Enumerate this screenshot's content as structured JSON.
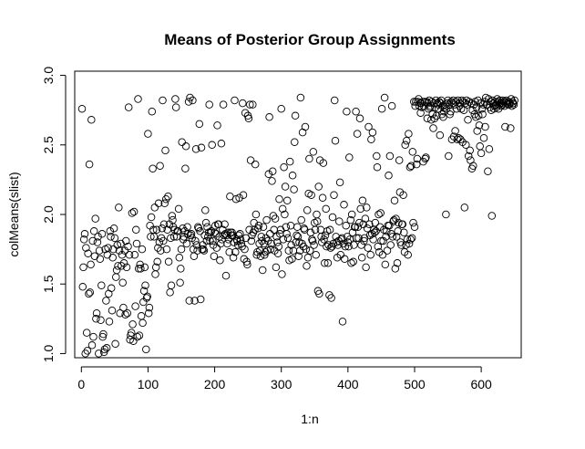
{
  "chart_data": {
    "type": "scatter",
    "title": "Means of Posterior Group Assignments",
    "xlabel": "1:n",
    "ylabel": "colMeans(slist)",
    "xlim": [
      -10,
      660
    ],
    "ylim": [
      0.97,
      3.03
    ],
    "xticks": [
      0,
      100,
      200,
      300,
      400,
      500,
      600
    ],
    "yticks": [
      1.0,
      1.5,
      2.0,
      2.5,
      3.0
    ],
    "xtick_labels": [
      "0",
      "100",
      "200",
      "300",
      "400",
      "500",
      "600"
    ],
    "ytick_labels": [
      "1.0",
      "1.5",
      "2.0",
      "2.5",
      "3.0"
    ],
    "grid": false,
    "legend": "none",
    "marker": "open-circle",
    "n": 650,
    "x": [
      1,
      2,
      3,
      4,
      5,
      6,
      7,
      8,
      9,
      10,
      11,
      12,
      13,
      14,
      15,
      16,
      17,
      18,
      19,
      20,
      21,
      22,
      23,
      24,
      25,
      26,
      27,
      28,
      29,
      30,
      31,
      32,
      33,
      34,
      35,
      36,
      37,
      38,
      39,
      40,
      41,
      42,
      43,
      44,
      45,
      46,
      47,
      48,
      49,
      50,
      51,
      52,
      53,
      54,
      55,
      56,
      57,
      58,
      59,
      60,
      61,
      62,
      63,
      64,
      65,
      66,
      67,
      68,
      69,
      70,
      71,
      72,
      73,
      74,
      75,
      76,
      77,
      78,
      79,
      80,
      81,
      82,
      83,
      84,
      85,
      86,
      87,
      88,
      89,
      90,
      91,
      92,
      93,
      94,
      95,
      96,
      97,
      98,
      99,
      100,
      101,
      102,
      103,
      104,
      105,
      106,
      107,
      108,
      109,
      110,
      111,
      112,
      113,
      114,
      115,
      116,
      117,
      118,
      119,
      120,
      121,
      122,
      123,
      124,
      125,
      126,
      127,
      128,
      129,
      130,
      131,
      132,
      133,
      134,
      135,
      136,
      137,
      138,
      139,
      140,
      141,
      142,
      143,
      144,
      145,
      146,
      147,
      148,
      149,
      150,
      151,
      152,
      153,
      154,
      155,
      156,
      157,
      158,
      159,
      160,
      161,
      162,
      163,
      164,
      165,
      166,
      167,
      168,
      169,
      170,
      171,
      172,
      173,
      174,
      175,
      176,
      177,
      178,
      179,
      180,
      181,
      182,
      183,
      184,
      185,
      186,
      187,
      188,
      189,
      190,
      191,
      192,
      193,
      194,
      195,
      196,
      197,
      198,
      199,
      200,
      201,
      202,
      203,
      204,
      205,
      206,
      207,
      208,
      209,
      210,
      211,
      212,
      213,
      214,
      215,
      216,
      217,
      218,
      219,
      220,
      221,
      222,
      223,
      224,
      225,
      226,
      227,
      228,
      229,
      230,
      231,
      232,
      233,
      234,
      235,
      236,
      237,
      238,
      239,
      240,
      241,
      242,
      243,
      244,
      245,
      246,
      247,
      248,
      249,
      250,
      251,
      252,
      253,
      254,
      255,
      256,
      257,
      258,
      259,
      260,
      261,
      262,
      263,
      264,
      265,
      266,
      267,
      268,
      269,
      270,
      271,
      272,
      273,
      274,
      275,
      276,
      277,
      278,
      279,
      280,
      281,
      282,
      283,
      284,
      285,
      286,
      287,
      288,
      289,
      290,
      291,
      292,
      293,
      294,
      295,
      296,
      297,
      298,
      299,
      300,
      301,
      302,
      303,
      304,
      305,
      306,
      307,
      308,
      309,
      310,
      311,
      312,
      313,
      314,
      315,
      316,
      317,
      318,
      319,
      320,
      321,
      322,
      323,
      324,
      325,
      326,
      327,
      328,
      329,
      330,
      331,
      332,
      333,
      334,
      335,
      336,
      337,
      338,
      339,
      340,
      341,
      342,
      343,
      344,
      345,
      346,
      347,
      348,
      349,
      350,
      351,
      352,
      353,
      354,
      355,
      356,
      357,
      358,
      359,
      360,
      361,
      362,
      363,
      364,
      365,
      366,
      367,
      368,
      369,
      370,
      371,
      372,
      373,
      374,
      375,
      376,
      377,
      378,
      379,
      380,
      381,
      382,
      383,
      384,
      385,
      386,
      387,
      388,
      389,
      390,
      391,
      392,
      393,
      394,
      395,
      396,
      397,
      398,
      399,
      400,
      401,
      402,
      403,
      404,
      405,
      406,
      407,
      408,
      409,
      410,
      411,
      412,
      413,
      414,
      415,
      416,
      417,
      418,
      419,
      420,
      421,
      422,
      423,
      424,
      425,
      426,
      427,
      428,
      429,
      430,
      431,
      432,
      433,
      434,
      435,
      436,
      437,
      438,
      439,
      440,
      441,
      442,
      443,
      444,
      445,
      446,
      447,
      448,
      449,
      450,
      451,
      452,
      453,
      454,
      455,
      456,
      457,
      458,
      459,
      460,
      461,
      462,
      463,
      464,
      465,
      466,
      467,
      468,
      469,
      470,
      471,
      472,
      473,
      474,
      475,
      476,
      477,
      478,
      479,
      480,
      481,
      482,
      483,
      484,
      485,
      486,
      487,
      488,
      489,
      490,
      491,
      492,
      493,
      494,
      495,
      496,
      497,
      498,
      499,
      500,
      501,
      502,
      503,
      504,
      505,
      506,
      507,
      508,
      509,
      510,
      511,
      512,
      513,
      514,
      515,
      516,
      517,
      518,
      519,
      520,
      521,
      522,
      523,
      524,
      525,
      526,
      527,
      528,
      529,
      530,
      531,
      532,
      533,
      534,
      535,
      536,
      537,
      538,
      539,
      540,
      541,
      542,
      543,
      544,
      545,
      546,
      547,
      548,
      549,
      550,
      551,
      552,
      553,
      554,
      555,
      556,
      557,
      558,
      559,
      560,
      561,
      562,
      563,
      564,
      565,
      566,
      567,
      568,
      569,
      570,
      571,
      572,
      573,
      574,
      575,
      576,
      577,
      578,
      579,
      580,
      581,
      582,
      583,
      584,
      585,
      586,
      587,
      588,
      589,
      590,
      591,
      592,
      593,
      594,
      595,
      596,
      597,
      598,
      599,
      600,
      601,
      602,
      603,
      604,
      605,
      606,
      607,
      608,
      609,
      610,
      611,
      612,
      613,
      614,
      615,
      616,
      617,
      618,
      619,
      620,
      621,
      622,
      623,
      624,
      625,
      626,
      627,
      628,
      629,
      630,
      631,
      632,
      633,
      634,
      635,
      636,
      637,
      638,
      639,
      640,
      641,
      642,
      643,
      644,
      645,
      646,
      647,
      648,
      649,
      650
    ],
    "y": [
      2.76,
      1.48,
      1.62,
      1.82,
      1.86,
      1.0,
      1.76,
      1.15,
      1.02,
      1.72,
      1.43,
      2.36,
      1.44,
      1.64,
      2.68,
      1.06,
      1.81,
      1.12,
      1.88,
      1.7,
      1.97,
      1.25,
      1.29,
      1.8,
      1.84,
      1.0,
      1.74,
      1.68,
      1.24,
      1.49,
      1.86,
      1.12,
      1.14,
      1.01,
      1.03,
      1.75,
      1.38,
      1.04,
      1.71,
      1.76,
      1.43,
      1.23,
      1.88,
      1.84,
      1.47,
      1.31,
      1.69,
      1.75,
      1.9,
      1.83,
      1.07,
      1.55,
      1.6,
      1.78,
      1.63,
      2.05,
      1.74,
      1.29,
      1.79,
      1.63,
      1.71,
      1.51,
      1.33,
      1.65,
      1.74,
      1.28,
      1.81,
      1.62,
      1.29,
      1.77,
      2.77,
      1.71,
      1.1,
      1.13,
      1.15,
      2.01,
      1.21,
      1.09,
      2.02,
      1.71,
      1.34,
      1.89,
      1.79,
      1.12,
      2.83,
      1.61,
      1.13,
      1.64,
      1.61,
      1.27,
      1.75,
      1.22,
      1.37,
      1.45,
      1.62,
      1.49,
      1.03,
      1.4,
      1.41,
      2.58,
      1.29,
      1.33,
      1.92,
      1.84,
      1.98,
      2.74,
      2.33,
      1.89,
      1.84,
      2.05,
      1.57,
      1.62,
      1.89,
      1.66,
      1.76,
      2.08,
      1.8,
      2.35,
      1.74,
      1.83,
      1.9,
      2.82,
      1.81,
      1.93,
      2.08,
      2.46,
      2.11,
      1.75,
      1.89,
      2.13,
      1.66,
      1.93,
      1.44,
      1.83,
      1.49,
      1.99,
      1.96,
      1.91,
      1.84,
      1.89,
      2.83,
      2.77,
      1.84,
      1.88,
      1.88,
      2.04,
      1.69,
      1.51,
      1.61,
      1.75,
      2.52,
      1.9,
      1.82,
      1.84,
      1.88,
      2.33,
      2.49,
      1.79,
      1.91,
      1.86,
      2.81,
      1.38,
      2.84,
      1.85,
      1.86,
      1.83,
      2.82,
      1.75,
      1.7,
      1.38,
      1.81,
      2.47,
      1.78,
      1.74,
      1.91,
      1.9,
      2.65,
      1.88,
      1.39,
      2.48,
      1.75,
      1.78,
      1.75,
      1.74,
      1.85,
      2.03,
      1.94,
      1.81,
      1.91,
      1.84,
      1.87,
      2.79,
      1.81,
      1.87,
      1.88,
      2.5,
      1.81,
      1.78,
      1.7,
      1.87,
      1.92,
      1.86,
      1.76,
      2.64,
      1.93,
      1.93,
      1.84,
      1.67,
      1.79,
      2.51,
      1.82,
      1.89,
      2.79,
      1.85,
      1.93,
      1.86,
      1.56,
      1.85,
      1.79,
      1.87,
      1.82,
      1.73,
      2.13,
      1.87,
      1.85,
      1.87,
      1.85,
      1.69,
      1.8,
      2.82,
      1.73,
      2.11,
      1.82,
      1.81,
      1.78,
      1.85,
      2.12,
      1.86,
      1.82,
      1.79,
      1.77,
      2.8,
      2.14,
      1.68,
      1.75,
      2.73,
      1.83,
      1.66,
      1.64,
      2.71,
      2.69,
      1.89,
      2.79,
      2.39,
      1.81,
      1.85,
      2.79,
      1.87,
      1.94,
      1.89,
      2.36,
      2.0,
      1.71,
      1.73,
      1.9,
      1.92,
      1.79,
      1.74,
      1.7,
      1.84,
      1.81,
      1.6,
      1.91,
      1.79,
      1.71,
      1.73,
      1.83,
      1.96,
      1.74,
      1.81,
      2.29,
      2.7,
      1.86,
      1.75,
      1.79,
      2.24,
      2.31,
      1.99,
      1.89,
      1.74,
      1.97,
      1.62,
      1.84,
      1.8,
      1.72,
      1.77,
      2.11,
      1.86,
      1.89,
      2.76,
      1.57,
      2.04,
      1.82,
      2.34,
      2.0,
      2.2,
      1.91,
      1.86,
      2.1,
      1.83,
      1.74,
      1.67,
      2.38,
      1.92,
      1.78,
      1.68,
      2.28,
      1.74,
      2.18,
      2.52,
      2.71,
      1.8,
      1.85,
      1.91,
      1.84,
      1.7,
      1.8,
      1.74,
      2.84,
      1.96,
      1.79,
      2.59,
      1.77,
      1.9,
      1.89,
      2.63,
      1.75,
      1.63,
      2.03,
      1.69,
      2.15,
      2.4,
      1.74,
      1.87,
      2.14,
      1.82,
      1.81,
      2.45,
      1.78,
      1.94,
      1.89,
      1.71,
      2.0,
      1.95,
      1.45,
      2.2,
      1.43,
      2.39,
      1.89,
      1.84,
      1.8,
      2.12,
      2.37,
      1.82,
      1.65,
      1.85,
      2.04,
      1.77,
      1.88,
      1.65,
      1.78,
      1.42,
      1.89,
      1.76,
      1.4,
      1.77,
      1.98,
      1.79,
      2.14,
      2.82,
      2.53,
      1.84,
      1.8,
      1.69,
      1.78,
      1.81,
      1.95,
      2.23,
      1.71,
      1.82,
      1.83,
      1.23,
      1.79,
      2.07,
      1.68,
      1.77,
      1.92,
      2.74,
      1.84,
      1.8,
      1.77,
      2.41,
      1.82,
      1.96,
      1.65,
      2.0,
      1.87,
      1.66,
      1.78,
      1.91,
      1.91,
      2.74,
      1.83,
      2.58,
      1.91,
      1.83,
      1.94,
      2.69,
      2.04,
      1.78,
      1.69,
      2.1,
      1.93,
      1.81,
      1.83,
      1.97,
      1.62,
      2.05,
      1.9,
      1.76,
      2.63,
      1.93,
      1.85,
      1.71,
      2.54,
      1.86,
      2.59,
      1.82,
      1.89,
      1.87,
      1.94,
      1.88,
      2.42,
      2.34,
      1.77,
      2.0,
      1.73,
      1.91,
      2.01,
      1.81,
      2.76,
      1.71,
      1.81,
      1.89,
      2.84,
      1.64,
      1.84,
      1.88,
      1.74,
      1.92,
      2.28,
      1.92,
      2.42,
      1.78,
      1.86,
      2.78,
      1.84,
      1.95,
      1.96,
      2.1,
      1.61,
      1.97,
      1.84,
      1.65,
      1.88,
      1.94,
      2.39,
      2.16,
      1.8,
      1.78,
      1.93,
      1.93,
      2.14,
      1.87,
      1.73,
      2.5,
      1.78,
      2.53,
      1.82,
      1.71,
      2.58,
      1.79,
      2.34,
      1.82,
      2.35,
      1.83,
      2.45,
      1.94,
      2.81,
      1.91,
      2.78,
      2.81,
      2.36,
      2.4,
      2.81,
      2.83,
      2.78,
      2.8,
      2.73,
      2.8,
      2.77,
      2.81,
      2.38,
      2.78,
      2.81,
      2.4,
      2.41,
      2.81,
      2.69,
      2.8,
      2.76,
      2.82,
      2.77,
      2.78,
      2.68,
      2.81,
      2.72,
      2.62,
      2.8,
      2.69,
      2.77,
      2.82,
      2.71,
      2.8,
      2.79,
      2.76,
      2.81,
      2.57,
      2.8,
      2.82,
      2.72,
      2.78,
      2.7,
      2.74,
      2.77,
      2.79,
      2.0,
      2.76,
      2.8,
      2.82,
      2.42,
      2.79,
      2.72,
      2.74,
      2.81,
      2.54,
      2.8,
      2.82,
      2.56,
      2.79,
      2.6,
      2.81,
      2.76,
      2.54,
      2.82,
      2.55,
      2.78,
      2.8,
      2.54,
      2.76,
      2.82,
      2.52,
      2.81,
      2.75,
      2.05,
      2.8,
      2.5,
      2.82,
      2.79,
      2.68,
      2.42,
      2.81,
      2.46,
      2.39,
      2.8,
      2.33,
      2.75,
      2.35,
      2.79,
      2.72,
      2.81,
      2.7,
      2.77,
      2.6,
      2.82,
      2.71,
      2.64,
      2.49,
      2.8,
      2.44,
      2.76,
      2.72,
      2.79,
      2.55,
      2.81,
      2.63,
      2.84,
      2.79,
      2.79,
      2.31,
      2.83,
      2.47,
      2.77,
      2.81,
      2.75,
      1.99,
      2.82,
      2.8,
      2.76,
      2.78,
      2.81,
      2.79,
      2.77,
      2.83,
      2.81,
      2.76,
      2.79,
      2.82,
      2.8,
      2.78,
      2.79,
      2.82,
      2.8,
      2.81,
      2.78,
      2.63,
      2.81,
      2.82,
      2.8,
      2.79,
      2.81,
      2.79,
      2.8,
      2.62,
      2.83,
      2.78,
      2.81,
      2.8,
      2.79,
      2.82
    ]
  }
}
